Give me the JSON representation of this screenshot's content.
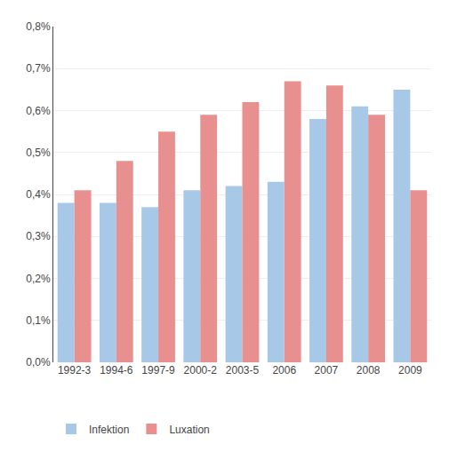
{
  "chart_data": {
    "type": "bar",
    "categories": [
      "1992-3",
      "1994-6",
      "1997-9",
      "2000-2",
      "2003-5",
      "2006",
      "2007",
      "2008",
      "2009"
    ],
    "series": [
      {
        "name": "Infektion",
        "color": "#A8C8E8",
        "values": [
          0.0038,
          0.0038,
          0.0037,
          0.0041,
          0.0042,
          0.0043,
          0.0058,
          0.0061,
          0.0065
        ]
      },
      {
        "name": "Luxation",
        "color": "#E89090",
        "values": [
          0.0041,
          0.0048,
          0.0055,
          0.0059,
          0.0062,
          0.0067,
          0.0066,
          0.0059,
          0.0041
        ]
      }
    ],
    "ylim": [
      0.0,
      0.008
    ],
    "yticks": [
      {
        "value": 0.0,
        "label": "0,0%"
      },
      {
        "value": 0.001,
        "label": "0,1%"
      },
      {
        "value": 0.002,
        "label": "0,2%"
      },
      {
        "value": 0.003,
        "label": "0,3%"
      },
      {
        "value": 0.004,
        "label": "0,4%"
      },
      {
        "value": 0.005,
        "label": "0,5%"
      },
      {
        "value": 0.006,
        "label": "0,6%"
      },
      {
        "value": 0.007,
        "label": "0,7%"
      },
      {
        "value": 0.008,
        "label": "0,8%"
      }
    ],
    "grid": true,
    "legend": "lower left"
  }
}
